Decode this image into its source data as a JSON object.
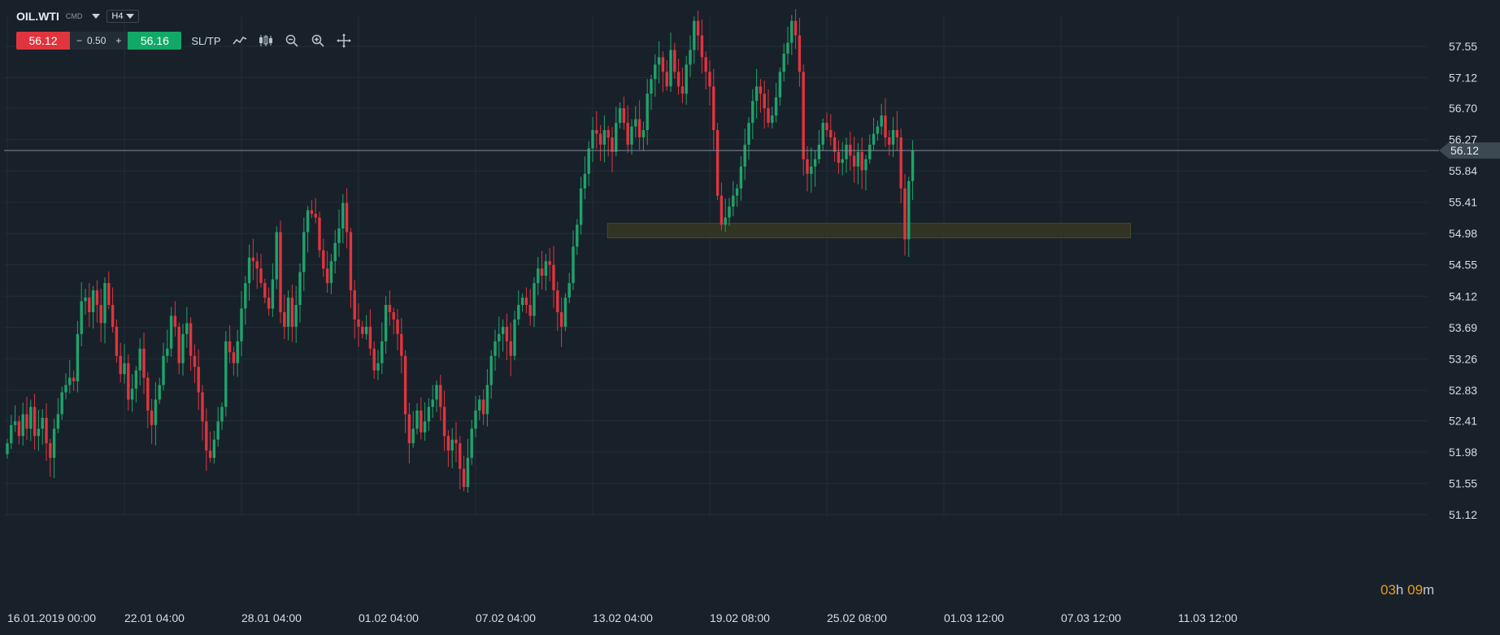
{
  "header": {
    "symbol": "OIL.WTI",
    "category": "CMD",
    "timeframe": "H4"
  },
  "trade": {
    "sell_price": "56.12",
    "minus": "−",
    "volume": "0.50",
    "plus": "+",
    "buy_price": "56.16",
    "sltp_label": "SL/TP"
  },
  "tools": [
    {
      "icon": "line-chart-icon"
    },
    {
      "icon": "candles-icon"
    },
    {
      "icon": "zoom-out-icon"
    },
    {
      "icon": "zoom-in-icon"
    },
    {
      "icon": "crosshair-icon"
    }
  ],
  "countdown": {
    "h": "03",
    "h_unit": "h",
    "m": "09",
    "m_unit": "m"
  },
  "colors": {
    "background": "#18212a",
    "up": "#1fa36b",
    "down": "#e0343e",
    "zone": "#3a3a22"
  },
  "chart_data": {
    "type": "candlestick",
    "title": "",
    "xlabel": "",
    "ylabel": "",
    "ylim": [
      51.12,
      57.98
    ],
    "y_ticks": [
      "57.55",
      "57.12",
      "56.70",
      "56.27",
      "55.84",
      "55.41",
      "54.98",
      "54.55",
      "54.12",
      "53.69",
      "53.26",
      "52.83",
      "52.41",
      "51.98",
      "51.55",
      "51.12"
    ],
    "x_ticks": [
      {
        "label": "16.01.2019 00:00",
        "index": 0
      },
      {
        "label": "22.01 04:00",
        "index": 30
      },
      {
        "label": "28.01 04:00",
        "index": 60
      },
      {
        "label": "01.02 04:00",
        "index": 90
      },
      {
        "label": "07.02 04:00",
        "index": 120
      },
      {
        "label": "13.02 04:00",
        "index": 150
      },
      {
        "label": "19.02 08:00",
        "index": 180
      },
      {
        "label": "25.02 08:00",
        "index": 210
      },
      {
        "label": "01.03 12:00",
        "index": 240
      },
      {
        "label": "07.03 12:00",
        "index": 270
      },
      {
        "label": "11.03 12:00",
        "index": 300
      }
    ],
    "last_price": 56.12,
    "last_price_label": "56.12",
    "support_zone": {
      "low": 54.92,
      "high": 55.12,
      "from_index": 154,
      "to_index": 288
    },
    "closes": [
      52.1,
      52.35,
      52.4,
      52.2,
      52.5,
      52.3,
      52.6,
      52.2,
      52.3,
      52.45,
      52.1,
      51.9,
      52.3,
      52.5,
      52.8,
      52.9,
      53.0,
      52.95,
      53.6,
      54.05,
      54.1,
      53.9,
      54.2,
      54.0,
      53.75,
      54.3,
      54.0,
      53.7,
      53.3,
      53.05,
      53.2,
      52.7,
      52.85,
      53.1,
      53.4,
      53.0,
      52.55,
      52.35,
      52.7,
      52.9,
      53.3,
      53.4,
      53.85,
      53.7,
      53.2,
      53.6,
      53.75,
      53.3,
      53.15,
      52.8,
      52.4,
      52.0,
      51.9,
      52.15,
      52.4,
      52.6,
      53.5,
      53.35,
      53.2,
      53.5,
      53.95,
      54.3,
      54.65,
      54.6,
      54.5,
      54.3,
      54.1,
      53.95,
      54.35,
      55.0,
      53.9,
      53.7,
      54.1,
      53.7,
      54.0,
      54.45,
      55.0,
      55.3,
      55.25,
      55.2,
      54.75,
      54.5,
      54.3,
      54.6,
      54.85,
      55.05,
      55.4,
      55.0,
      54.2,
      53.8,
      53.7,
      53.6,
      53.7,
      53.4,
      53.1,
      53.2,
      53.5,
      54.0,
      53.9,
      53.8,
      53.6,
      53.3,
      52.5,
      52.1,
      52.3,
      52.55,
      52.25,
      52.4,
      52.6,
      52.7,
      52.9,
      52.6,
      52.2,
      52.0,
      52.15,
      52.1,
      51.75,
      51.5,
      51.9,
      52.3,
      52.55,
      52.7,
      52.5,
      52.9,
      53.3,
      53.5,
      53.6,
      53.7,
      53.5,
      53.3,
      53.8,
      54.0,
      54.1,
      54.0,
      53.85,
      54.3,
      54.5,
      54.4,
      54.6,
      54.55,
      54.2,
      53.9,
      53.7,
      54.1,
      54.3,
      54.8,
      55.1,
      55.6,
      55.8,
      56.15,
      56.4,
      56.35,
      56.2,
      56.4,
      56.3,
      56.1,
      56.5,
      56.7,
      56.5,
      56.2,
      56.45,
      56.55,
      56.3,
      56.4,
      56.9,
      57.1,
      57.3,
      57.4,
      57.2,
      57.0,
      57.5,
      57.2,
      57.0,
      56.9,
      57.3,
      57.5,
      57.9,
      57.7,
      57.4,
      57.2,
      57.0,
      56.4,
      55.5,
      55.1,
      55.2,
      55.35,
      55.5,
      55.6,
      55.9,
      56.2,
      56.5,
      56.8,
      57.0,
      56.9,
      56.7,
      56.5,
      56.6,
      56.85,
      57.2,
      57.45,
      57.6,
      57.9,
      57.7,
      57.2,
      56.0,
      55.8,
      55.9,
      56.0,
      56.2,
      56.5,
      56.4,
      56.3,
      56.1,
      55.95,
      56.0,
      56.2,
      56.05,
      55.9,
      56.1,
      55.85,
      56.0,
      56.2,
      56.35,
      56.45,
      56.6,
      56.3,
      56.2,
      56.4,
      56.3,
      55.6,
      54.9,
      55.7,
      56.12
    ],
    "series_colors": {
      "up": "#1fa36b",
      "down": "#e0343e"
    }
  }
}
